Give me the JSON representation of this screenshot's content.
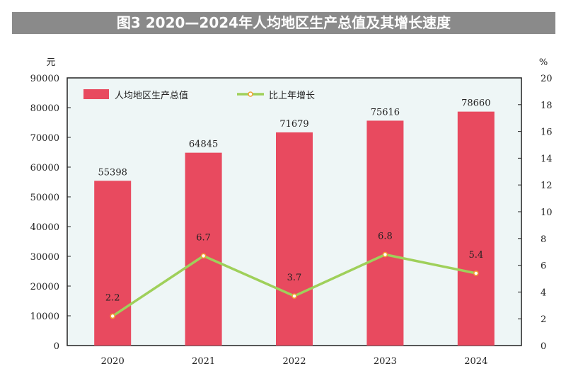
{
  "chart_data": {
    "type": "bar+line",
    "title": "图3 2020—2024年人均地区生产总值及其增长速度",
    "categories": [
      "2020",
      "2021",
      "2022",
      "2023",
      "2024"
    ],
    "series": [
      {
        "name": "人均地区生产总值",
        "type": "bar",
        "axis": "left",
        "values": [
          55398,
          64845,
          71679,
          75616,
          78660
        ],
        "color": "#e84a5f"
      },
      {
        "name": "比上年增长",
        "type": "line",
        "axis": "right",
        "values": [
          2.2,
          6.7,
          3.7,
          6.8,
          5.4
        ],
        "color": "#9fd05a",
        "marker_color": "#f0a030"
      }
    ],
    "left_axis": {
      "unit": "元",
      "ylim": [
        0,
        90000
      ],
      "ticks": [
        0,
        10000,
        20000,
        30000,
        40000,
        50000,
        60000,
        70000,
        80000,
        90000
      ]
    },
    "right_axis": {
      "unit": "%",
      "ylim": [
        0,
        20
      ],
      "ticks": [
        0,
        2,
        4,
        6,
        8,
        10,
        12,
        14,
        16,
        18,
        20
      ]
    },
    "legend": "top-left",
    "grid": false,
    "plot_background": "#eef6f6"
  }
}
